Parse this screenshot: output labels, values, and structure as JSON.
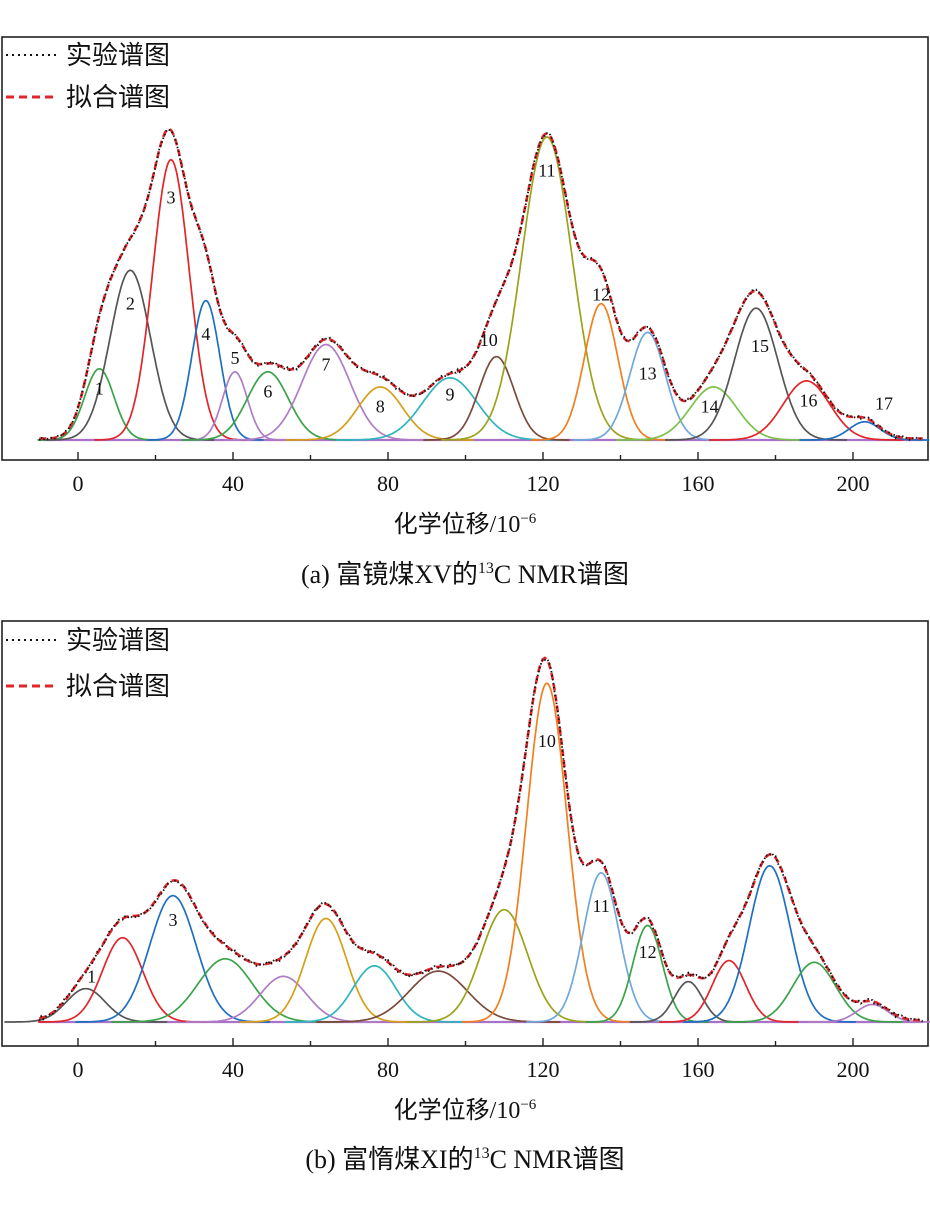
{
  "chart_data": [
    {
      "type": "line",
      "title": "(a) 富镜煤XV的13C NMR谱图",
      "caption_prefix": "(a) 富镜煤XV的",
      "caption_sup": "13",
      "caption_suffix": "C NMR谱图",
      "xlabel_base": "化学位移/10",
      "xlabel_exp": "−6",
      "ylabel": "",
      "xlim": [
        -20,
        220
      ],
      "ylim": [
        0,
        1.08
      ],
      "xticks": [
        0,
        40,
        80,
        120,
        160,
        200
      ],
      "xtick_labels": [
        "0",
        "40",
        "80",
        "120",
        "160",
        "200"
      ],
      "legend": {
        "position": "top-left",
        "entries": [
          {
            "label": "实验谱图",
            "color": "#111111",
            "style": "dotted"
          },
          {
            "label": "拟合谱图",
            "color": "#e0262b",
            "style": "dashed"
          }
        ]
      },
      "peaks": [
        {
          "label": "1",
          "center": 5.5,
          "height": 0.235,
          "width": 3.8,
          "color": "#3aa34a",
          "label_x": 5.5,
          "label_y": 0.17
        },
        {
          "label": "2",
          "center": 13.5,
          "height": 0.56,
          "width": 5.2,
          "color": "#555555",
          "label_x": 13.5,
          "label_y": 0.45
        },
        {
          "label": "3",
          "center": 24.0,
          "height": 0.925,
          "width": 4.7,
          "color": "#e0262b",
          "label_x": 24.0,
          "label_y": 0.8
        },
        {
          "label": "4",
          "center": 33.0,
          "height": 0.46,
          "width": 3.6,
          "color": "#1f6fc0",
          "label_x": 33.0,
          "label_y": 0.35
        },
        {
          "label": "5",
          "center": 40.5,
          "height": 0.225,
          "width": 3.2,
          "color": "#b07cc6",
          "label_x": 40.5,
          "label_y": 0.27
        },
        {
          "label": "6",
          "center": 49.0,
          "height": 0.225,
          "width": 5.3,
          "color": "#3aa34a",
          "label_x": 49.0,
          "label_y": 0.16
        },
        {
          "label": "7",
          "center": 64.0,
          "height": 0.315,
          "width": 6.2,
          "color": "#b07cc6",
          "label_x": 64.0,
          "label_y": 0.25
        },
        {
          "label": "8",
          "center": 78.0,
          "height": 0.175,
          "width": 5.8,
          "color": "#d4a017",
          "label_x": 78.0,
          "label_y": 0.11
        },
        {
          "label": "9",
          "center": 96.0,
          "height": 0.205,
          "width": 7.0,
          "color": "#2fb4c0",
          "label_x": 96.0,
          "label_y": 0.15
        },
        {
          "label": "10",
          "center": 108.0,
          "height": 0.275,
          "width": 4.5,
          "color": "#7b4a3a",
          "label_x": 106.0,
          "label_y": 0.33
        },
        {
          "label": "11",
          "center": 121.0,
          "height": 1.0,
          "width": 6.5,
          "color": "#9aa31a",
          "label_x": 121.0,
          "label_y": 0.89
        },
        {
          "label": "12",
          "center": 135.0,
          "height": 0.45,
          "width": 4.3,
          "color": "#f07f1f",
          "label_x": 135.0,
          "label_y": 0.48
        },
        {
          "label": "13",
          "center": 147.0,
          "height": 0.355,
          "width": 4.6,
          "color": "#6fa8dc",
          "label_x": 147.0,
          "label_y": 0.22
        },
        {
          "label": "14",
          "center": 164.0,
          "height": 0.175,
          "width": 6.0,
          "color": "#7cc14b",
          "label_x": 163.0,
          "label_y": 0.11
        },
        {
          "label": "15",
          "center": 175.0,
          "height": 0.435,
          "width": 5.6,
          "color": "#555555",
          "label_x": 176.0,
          "label_y": 0.31
        },
        {
          "label": "16",
          "center": 188.0,
          "height": 0.195,
          "width": 6.0,
          "color": "#e0262b",
          "label_x": 188.5,
          "label_y": 0.13
        },
        {
          "label": "17",
          "center": 203.0,
          "height": 0.06,
          "width": 4.0,
          "color": "#1f6fc0",
          "label_x": 208.0,
          "label_y": 0.12
        }
      ],
      "baseline_y": 0.03
    },
    {
      "type": "line",
      "title": "(b) 富惰煤XI的13C NMR谱图",
      "caption_prefix": "(b) 富惰煤XI的",
      "caption_sup": "13",
      "caption_suffix": "C NMR谱图",
      "xlabel_base": "化学位移/10",
      "xlabel_exp": "−6",
      "ylabel": "",
      "xlim": [
        -20,
        220
      ],
      "ylim": [
        0,
        1.08
      ],
      "xticks": [
        0,
        40,
        80,
        120,
        160,
        200
      ],
      "xtick_labels": [
        "0",
        "40",
        "80",
        "120",
        "160",
        "200"
      ],
      "legend": {
        "position": "top-left",
        "entries": [
          {
            "label": "实验谱图",
            "color": "#111111",
            "style": "dotted"
          },
          {
            "label": "拟合谱图",
            "color": "#e0262b",
            "style": "dashed"
          }
        ]
      },
      "peaks": [
        {
          "label": "1",
          "center": 2.0,
          "height": 0.095,
          "width": 5.0,
          "color": "#555555",
          "label_x": 3.5,
          "label_y": 0.13
        },
        {
          "label": "",
          "center": 11.5,
          "height": 0.24,
          "width": 5.2,
          "color": "#e0262b",
          "label_x": 0,
          "label_y": 0
        },
        {
          "label": "3",
          "center": 24.5,
          "height": 0.36,
          "width": 6.0,
          "color": "#1f6fc0",
          "label_x": 24.5,
          "label_y": 0.29
        },
        {
          "label": "",
          "center": 38.0,
          "height": 0.18,
          "width": 7.0,
          "color": "#3aa34a",
          "label_x": 0,
          "label_y": 0
        },
        {
          "label": "",
          "center": 53.0,
          "height": 0.13,
          "width": 6.0,
          "color": "#b07cc6",
          "label_x": 0,
          "label_y": 0
        },
        {
          "label": "",
          "center": 64.0,
          "height": 0.295,
          "width": 5.3,
          "color": "#d4a017",
          "label_x": 0,
          "label_y": 0
        },
        {
          "label": "",
          "center": 76.5,
          "height": 0.16,
          "width": 5.5,
          "color": "#2fb4c0",
          "label_x": 0,
          "label_y": 0
        },
        {
          "label": "",
          "center": 93.0,
          "height": 0.145,
          "width": 7.5,
          "color": "#7b4a3a",
          "label_x": 0,
          "label_y": 0
        },
        {
          "label": "",
          "center": 110.0,
          "height": 0.32,
          "width": 6.0,
          "color": "#9aa31a",
          "label_x": 0,
          "label_y": 0
        },
        {
          "label": "10",
          "center": 121.0,
          "height": 0.965,
          "width": 5.2,
          "color": "#f07f1f",
          "label_x": 121.0,
          "label_y": 0.8
        },
        {
          "label": "11",
          "center": 135.0,
          "height": 0.425,
          "width": 4.6,
          "color": "#6fa8dc",
          "label_x": 135.0,
          "label_y": 0.33
        },
        {
          "label": "12",
          "center": 147.0,
          "height": 0.275,
          "width": 3.8,
          "color": "#3aa34a",
          "label_x": 147.0,
          "label_y": 0.2
        },
        {
          "label": "",
          "center": 157.5,
          "height": 0.115,
          "width": 3.6,
          "color": "#555555",
          "label_x": 0,
          "label_y": 0
        },
        {
          "label": "",
          "center": 168.0,
          "height": 0.175,
          "width": 4.3,
          "color": "#e0262b",
          "label_x": 0,
          "label_y": 0
        },
        {
          "label": "",
          "center": 178.5,
          "height": 0.445,
          "width": 5.3,
          "color": "#1f6fc0",
          "label_x": 0,
          "label_y": 0
        },
        {
          "label": "",
          "center": 190.0,
          "height": 0.17,
          "width": 5.5,
          "color": "#3aa34a",
          "label_x": 0,
          "label_y": 0
        },
        {
          "label": "",
          "center": 205.0,
          "height": 0.05,
          "width": 4.0,
          "color": "#b07cc6",
          "label_x": 0,
          "label_y": 0
        }
      ],
      "baseline_y": 0.03
    }
  ]
}
